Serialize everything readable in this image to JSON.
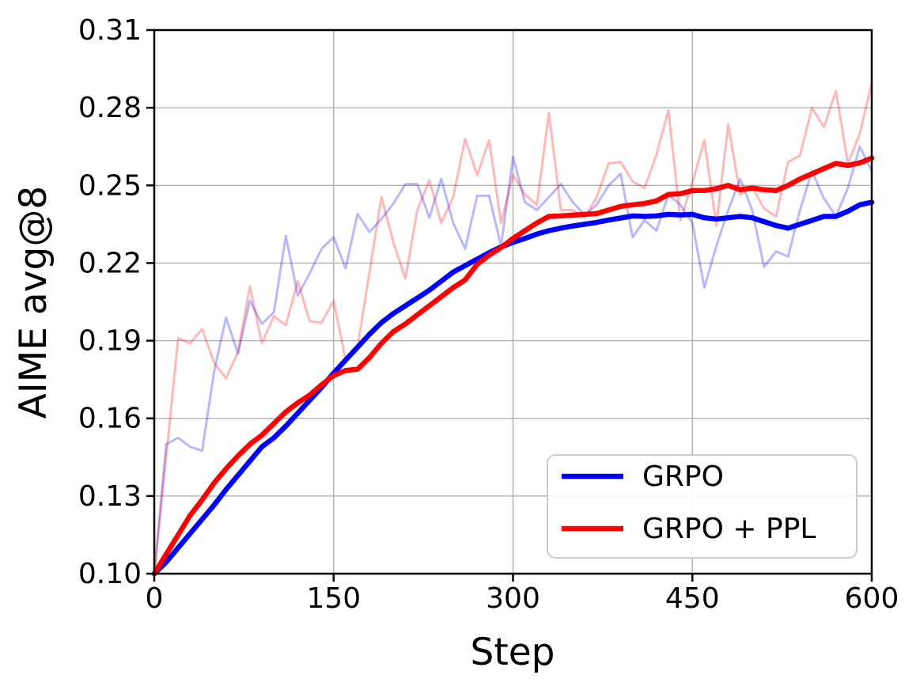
{
  "chart_data": {
    "type": "line",
    "title": "",
    "xlabel": "Step",
    "ylabel": "AIME avg@8",
    "xlim": [
      0,
      600
    ],
    "ylim": [
      0.1,
      0.31
    ],
    "x_ticks": [
      0,
      150,
      300,
      450,
      600
    ],
    "x_tick_labels": [
      "0",
      "150",
      "300",
      "450",
      "600"
    ],
    "y_ticks": [
      0.1,
      0.13,
      0.16,
      0.19,
      0.22,
      0.25,
      0.28,
      0.31
    ],
    "y_tick_labels": [
      "0.10",
      "0.13",
      "0.16",
      "0.19",
      "0.22",
      "0.25",
      "0.28",
      "0.31"
    ],
    "grid": true,
    "legend_position": "lower right",
    "steps": [
      0,
      10,
      20,
      30,
      40,
      50,
      60,
      70,
      80,
      90,
      100,
      110,
      120,
      130,
      140,
      150,
      160,
      170,
      180,
      190,
      200,
      210,
      220,
      230,
      240,
      250,
      260,
      270,
      280,
      290,
      300,
      310,
      320,
      330,
      340,
      350,
      360,
      370,
      380,
      390,
      400,
      410,
      420,
      430,
      440,
      450,
      460,
      470,
      480,
      490,
      500,
      510,
      520,
      530,
      540,
      550,
      560,
      570,
      580,
      590,
      600
    ],
    "series": [
      {
        "name": "GRPO (raw)",
        "role": "raw",
        "color": "#0000ff",
        "opacity": 0.28,
        "width": 3,
        "values": [
          0.1,
          0.15,
          0.1525,
          0.149,
          0.1475,
          0.178,
          0.199,
          0.185,
          0.2055,
          0.1965,
          0.201,
          0.2305,
          0.2075,
          0.216,
          0.2255,
          0.23,
          0.218,
          0.239,
          0.232,
          0.237,
          0.243,
          0.2505,
          0.2505,
          0.2375,
          0.2525,
          0.2355,
          0.2255,
          0.246,
          0.246,
          0.2265,
          0.261,
          0.2435,
          0.2405,
          0.2455,
          0.2505,
          0.2435,
          0.2385,
          0.2425,
          0.25,
          0.2545,
          0.23,
          0.2365,
          0.2325,
          0.2465,
          0.2425,
          0.2355,
          0.2105,
          0.2265,
          0.2405,
          0.2525,
          0.2405,
          0.2185,
          0.2245,
          0.2225,
          0.2405,
          0.2555,
          0.245,
          0.238,
          0.249,
          0.265,
          0.2555
        ]
      },
      {
        "name": "GRPO + PPL (raw)",
        "role": "raw",
        "color": "#ff0000",
        "opacity": 0.28,
        "width": 3,
        "values": [
          0.1,
          0.145,
          0.191,
          0.189,
          0.1945,
          0.1815,
          0.1755,
          0.1855,
          0.211,
          0.189,
          0.1995,
          0.196,
          0.213,
          0.1975,
          0.197,
          0.2055,
          0.1825,
          0.1875,
          0.2165,
          0.2455,
          0.228,
          0.214,
          0.2405,
          0.252,
          0.2355,
          0.2455,
          0.268,
          0.254,
          0.2675,
          0.2355,
          0.254,
          0.2465,
          0.2425,
          0.278,
          0.2405,
          0.2405,
          0.2375,
          0.2455,
          0.2585,
          0.259,
          0.2515,
          0.249,
          0.262,
          0.279,
          0.2365,
          0.251,
          0.2675,
          0.2345,
          0.2735,
          0.2465,
          0.2495,
          0.241,
          0.238,
          0.259,
          0.2615,
          0.28,
          0.2725,
          0.2865,
          0.2585,
          0.27,
          0.2895
        ]
      },
      {
        "name": "GRPO",
        "role": "smoothed",
        "color": "#0000ff",
        "opacity": 1,
        "width": 6.5,
        "values": [
          0.1,
          0.1045,
          0.11,
          0.1155,
          0.121,
          0.1265,
          0.1325,
          0.138,
          0.1435,
          0.149,
          0.1525,
          0.157,
          0.162,
          0.167,
          0.172,
          0.1775,
          0.1825,
          0.1875,
          0.1925,
          0.197,
          0.2005,
          0.2035,
          0.2065,
          0.2095,
          0.213,
          0.2165,
          0.219,
          0.2215,
          0.224,
          0.2262,
          0.228,
          0.2295,
          0.2312,
          0.2325,
          0.2335,
          0.2343,
          0.235,
          0.2357,
          0.2366,
          0.2374,
          0.2382,
          0.238,
          0.2382,
          0.2388,
          0.2386,
          0.2388,
          0.2375,
          0.237,
          0.2375,
          0.238,
          0.2375,
          0.236,
          0.2345,
          0.2335,
          0.235,
          0.2365,
          0.238,
          0.238,
          0.24,
          0.2425,
          0.2435
        ]
      },
      {
        "name": "GRPO + PPL",
        "role": "smoothed",
        "color": "#ff0000",
        "opacity": 1,
        "width": 6.5,
        "values": [
          0.1,
          0.1075,
          0.115,
          0.1225,
          0.1285,
          0.135,
          0.1405,
          0.1455,
          0.15,
          0.1535,
          0.158,
          0.1625,
          0.166,
          0.169,
          0.173,
          0.1765,
          0.1785,
          0.179,
          0.1835,
          0.189,
          0.1935,
          0.1965,
          0.2,
          0.2035,
          0.207,
          0.2105,
          0.2135,
          0.2195,
          0.223,
          0.226,
          0.2295,
          0.2325,
          0.2355,
          0.238,
          0.2382,
          0.2385,
          0.2388,
          0.2391,
          0.2405,
          0.2419,
          0.2425,
          0.243,
          0.244,
          0.2465,
          0.2468,
          0.248,
          0.248,
          0.2487,
          0.25,
          0.2483,
          0.249,
          0.2483,
          0.248,
          0.25,
          0.2525,
          0.2545,
          0.2565,
          0.2585,
          0.2577,
          0.2587,
          0.2605
        ]
      }
    ]
  },
  "legend": {
    "items": [
      {
        "label": "GRPO",
        "color": "#0000ff"
      },
      {
        "label": "GRPO + PPL",
        "color": "#ff0000"
      }
    ]
  },
  "colors": {
    "background": "#ffffff",
    "grid": "#b0b0b0",
    "spine": "#000000",
    "legend_border": "#cccccc"
  }
}
